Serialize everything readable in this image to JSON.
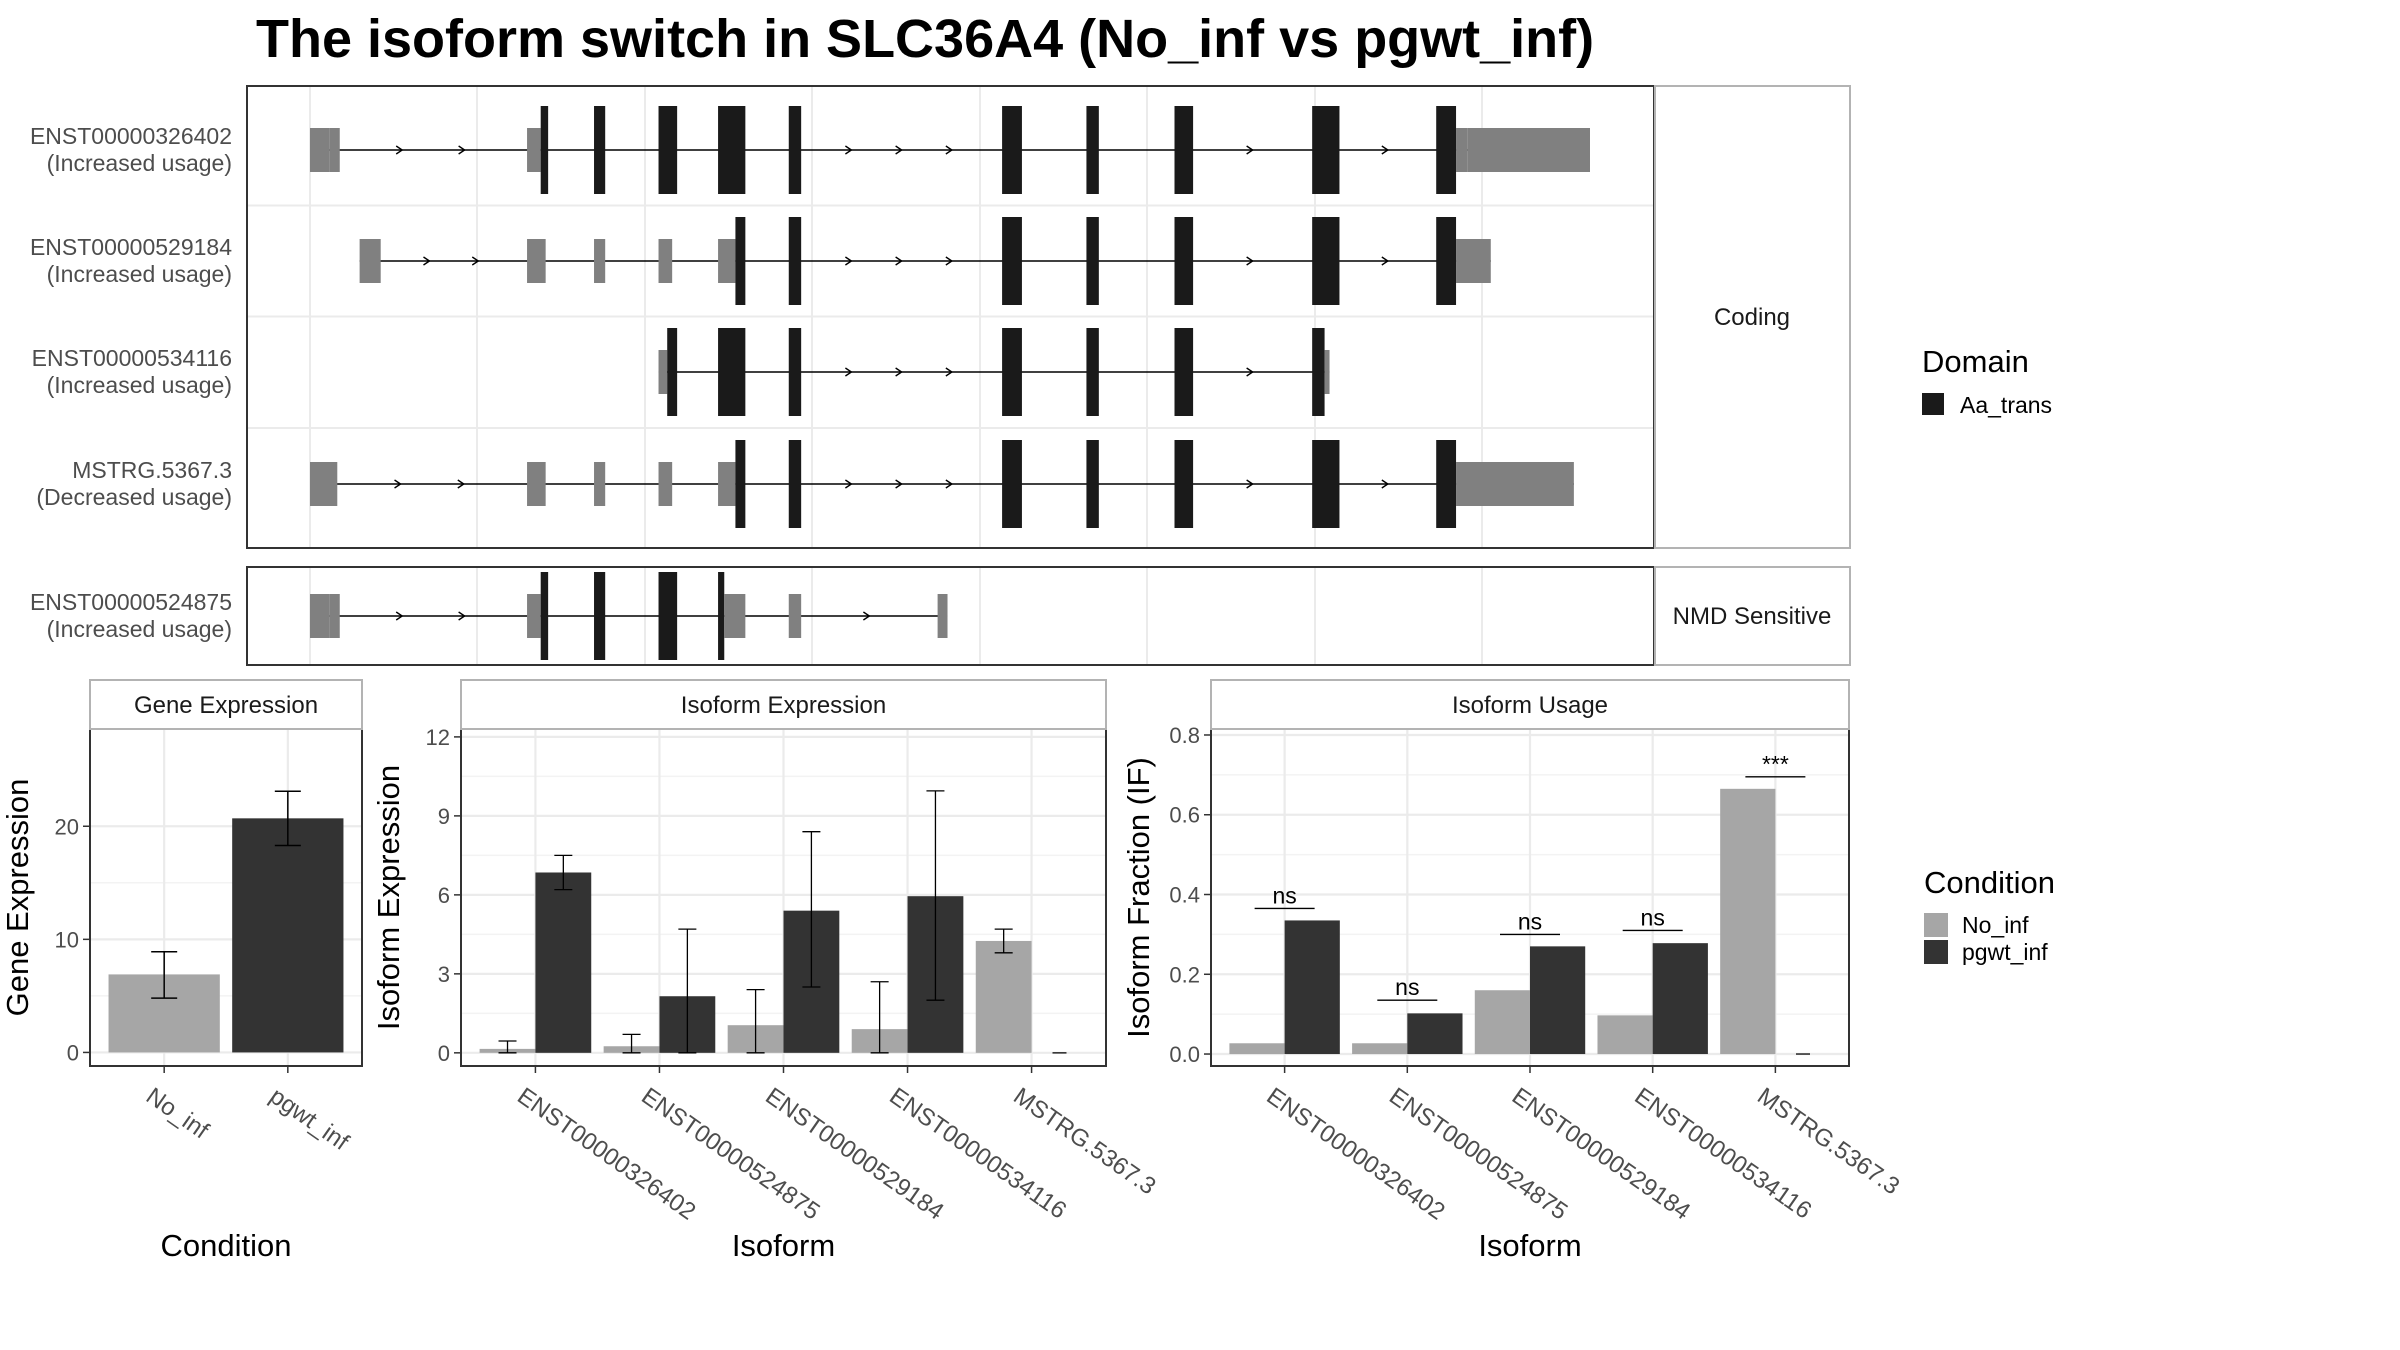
{
  "title": "The isoform switch in SLC36A4 (No_inf vs pgwt_inf)",
  "colors": {
    "utr": "#808080",
    "cds": "#1a1a1a",
    "domain": "#1a1a1a",
    "no_inf": "#a6a6a6",
    "pgwt_inf": "#333333",
    "panel_border": "#333333",
    "strip_border": "#b3b3b3",
    "grid": "#ebebeb",
    "text": "#4d4d4d"
  },
  "chart_data": [
    {
      "type": "gene_structure",
      "groups": [
        {
          "label": "Coding",
          "transcripts": [
            {
              "id": "ENST00000326402",
              "usage": "(Increased usage)",
              "features": [
                {
                  "s": 0,
                  "e": 1.6,
                  "t": "utr"
                },
                {
                  "s": 1.6,
                  "e": 2.4,
                  "t": "utr"
                },
                {
                  "s": 17.5,
                  "e": 18.6,
                  "t": "utr"
                },
                {
                  "s": 18.6,
                  "e": 19.2,
                  "t": "cds"
                },
                {
                  "s": 22.9,
                  "e": 23.8,
                  "t": "cds"
                },
                {
                  "s": 28.1,
                  "e": 29.6,
                  "t": "cds"
                },
                {
                  "s": 32.9,
                  "e": 35.1,
                  "t": "cds"
                },
                {
                  "s": 38.6,
                  "e": 39.6,
                  "t": "cds"
                },
                {
                  "s": 55.8,
                  "e": 57.4,
                  "t": "cds"
                },
                {
                  "s": 62.6,
                  "e": 63.6,
                  "t": "cds"
                },
                {
                  "s": 69.7,
                  "e": 71.2,
                  "t": "cds"
                },
                {
                  "s": 80.8,
                  "e": 83.0,
                  "t": "cds"
                },
                {
                  "s": 90.8,
                  "e": 92.4,
                  "t": "cds"
                },
                {
                  "s": 92.4,
                  "e": 93.3,
                  "t": "utr"
                },
                {
                  "s": 93.3,
                  "e": 103.2,
                  "t": "utr"
                }
              ]
            },
            {
              "id": "ENST00000529184",
              "usage": "(Increased usage)",
              "features": [
                {
                  "s": 4.0,
                  "e": 5.7,
                  "t": "utr"
                },
                {
                  "s": 17.5,
                  "e": 19.0,
                  "t": "utr"
                },
                {
                  "s": 22.9,
                  "e": 23.8,
                  "t": "utr"
                },
                {
                  "s": 28.1,
                  "e": 29.2,
                  "t": "utr"
                },
                {
                  "s": 32.9,
                  "e": 34.3,
                  "t": "utr"
                },
                {
                  "s": 34.3,
                  "e": 35.1,
                  "t": "cds"
                },
                {
                  "s": 38.6,
                  "e": 39.6,
                  "t": "cds"
                },
                {
                  "s": 55.8,
                  "e": 57.4,
                  "t": "cds"
                },
                {
                  "s": 62.6,
                  "e": 63.6,
                  "t": "cds"
                },
                {
                  "s": 69.7,
                  "e": 71.2,
                  "t": "cds"
                },
                {
                  "s": 80.8,
                  "e": 83.0,
                  "t": "cds"
                },
                {
                  "s": 90.8,
                  "e": 92.4,
                  "t": "cds"
                },
                {
                  "s": 92.4,
                  "e": 95.2,
                  "t": "utr"
                }
              ]
            },
            {
              "id": "ENST00000534116",
              "usage": "(Increased usage)",
              "features": [
                {
                  "s": 28.1,
                  "e": 28.8,
                  "t": "utr"
                },
                {
                  "s": 28.8,
                  "e": 29.6,
                  "t": "cds"
                },
                {
                  "s": 32.9,
                  "e": 35.1,
                  "t": "cds"
                },
                {
                  "s": 38.6,
                  "e": 39.6,
                  "t": "cds"
                },
                {
                  "s": 55.8,
                  "e": 57.4,
                  "t": "cds"
                },
                {
                  "s": 62.6,
                  "e": 63.6,
                  "t": "cds"
                },
                {
                  "s": 69.7,
                  "e": 71.2,
                  "t": "cds"
                },
                {
                  "s": 80.8,
                  "e": 81.8,
                  "t": "cds"
                },
                {
                  "s": 81.8,
                  "e": 82.2,
                  "t": "utr"
                }
              ]
            },
            {
              "id": "MSTRG.5367.3",
              "usage": "(Decreased usage)",
              "features": [
                {
                  "s": 0,
                  "e": 2.2,
                  "t": "utr"
                },
                {
                  "s": 17.5,
                  "e": 19.0,
                  "t": "utr"
                },
                {
                  "s": 22.9,
                  "e": 23.8,
                  "t": "utr"
                },
                {
                  "s": 28.1,
                  "e": 29.2,
                  "t": "utr"
                },
                {
                  "s": 32.9,
                  "e": 34.3,
                  "t": "utr"
                },
                {
                  "s": 34.3,
                  "e": 35.1,
                  "t": "cds"
                },
                {
                  "s": 38.6,
                  "e": 39.6,
                  "t": "cds"
                },
                {
                  "s": 55.8,
                  "e": 57.4,
                  "t": "cds"
                },
                {
                  "s": 62.6,
                  "e": 63.6,
                  "t": "cds"
                },
                {
                  "s": 69.7,
                  "e": 71.2,
                  "t": "cds"
                },
                {
                  "s": 80.8,
                  "e": 83.0,
                  "t": "cds"
                },
                {
                  "s": 90.8,
                  "e": 92.4,
                  "t": "cds"
                },
                {
                  "s": 92.4,
                  "e": 101.9,
                  "t": "utr"
                }
              ]
            }
          ]
        },
        {
          "label": "NMD Sensitive",
          "transcripts": [
            {
              "id": "ENST00000524875",
              "usage": "(Increased usage)",
              "features": [
                {
                  "s": 0,
                  "e": 1.6,
                  "t": "utr"
                },
                {
                  "s": 1.6,
                  "e": 2.4,
                  "t": "utr"
                },
                {
                  "s": 17.5,
                  "e": 18.6,
                  "t": "utr"
                },
                {
                  "s": 18.6,
                  "e": 19.2,
                  "t": "cds"
                },
                {
                  "s": 22.9,
                  "e": 23.8,
                  "t": "cds"
                },
                {
                  "s": 28.1,
                  "e": 29.6,
                  "t": "cds"
                },
                {
                  "s": 32.9,
                  "e": 33.4,
                  "t": "cds"
                },
                {
                  "s": 33.4,
                  "e": 35.1,
                  "t": "utr"
                },
                {
                  "s": 38.6,
                  "e": 39.6,
                  "t": "utr"
                },
                {
                  "s": 50.6,
                  "e": 51.4,
                  "t": "utr"
                }
              ]
            }
          ]
        }
      ],
      "legend": {
        "title": "Domain",
        "entries": [
          "Aa_trans"
        ]
      }
    },
    {
      "type": "bar",
      "strip": "Gene Expression",
      "xlabel": "Condition",
      "ylabel": "Gene Expression",
      "categories": [
        "No_inf",
        "pgwt_inf"
      ],
      "values": [
        6.9,
        20.7
      ],
      "err_low": [
        4.8,
        18.3
      ],
      "err_high": [
        8.9,
        23.1
      ],
      "ylim": [
        -1.2,
        28.6
      ],
      "yticks": [
        "0",
        "10",
        "20"
      ]
    },
    {
      "type": "bar",
      "strip": "Isoform Expression",
      "xlabel": "Isoform",
      "ylabel": "Isoform Expression",
      "categories": [
        "ENST00000326402",
        "ENST00000524875",
        "ENST00000529184",
        "ENST00000534116",
        "MSTRG.5367.3"
      ],
      "series": [
        {
          "name": "No_inf",
          "values": [
            0.15,
            0.25,
            1.05,
            0.9,
            4.25
          ],
          "err_low": [
            0.0,
            0.0,
            0.0,
            0.0,
            3.8
          ],
          "err_high": [
            0.45,
            0.7,
            2.4,
            2.7,
            4.7
          ]
        },
        {
          "name": "pgwt_inf",
          "values": [
            6.85,
            2.15,
            5.4,
            5.95,
            0.0
          ],
          "err_low": [
            6.2,
            0.0,
            2.5,
            2.0,
            0.0
          ],
          "err_high": [
            7.5,
            4.7,
            8.4,
            9.95,
            0.0
          ]
        }
      ],
      "ylim": [
        -0.5,
        12.3
      ],
      "yticks": [
        "0",
        "3",
        "6",
        "9",
        "12"
      ]
    },
    {
      "type": "bar",
      "strip": "Isoform Usage",
      "xlabel": "Isoform",
      "ylabel": "Isoform Fraction (IF)",
      "categories": [
        "ENST00000326402",
        "ENST00000524875",
        "ENST00000529184",
        "ENST00000534116",
        "MSTRG.5367.3"
      ],
      "series": [
        {
          "name": "No_inf",
          "values": [
            0.027,
            0.027,
            0.16,
            0.097,
            0.665
          ]
        },
        {
          "name": "pgwt_inf",
          "values": [
            0.335,
            0.102,
            0.27,
            0.278,
            0.0
          ]
        }
      ],
      "significance": [
        "ns",
        "ns",
        "ns",
        "ns",
        "***"
      ],
      "sig_line_y": [
        0.365,
        0.135,
        0.3,
        0.31,
        0.695
      ],
      "ylim": [
        -0.03,
        0.815
      ],
      "yticks": [
        "0.0",
        "0.2",
        "0.4",
        "0.6",
        "0.8"
      ],
      "legend": {
        "title": "Condition",
        "entries": [
          "No_inf",
          "pgwt_inf"
        ]
      }
    }
  ]
}
